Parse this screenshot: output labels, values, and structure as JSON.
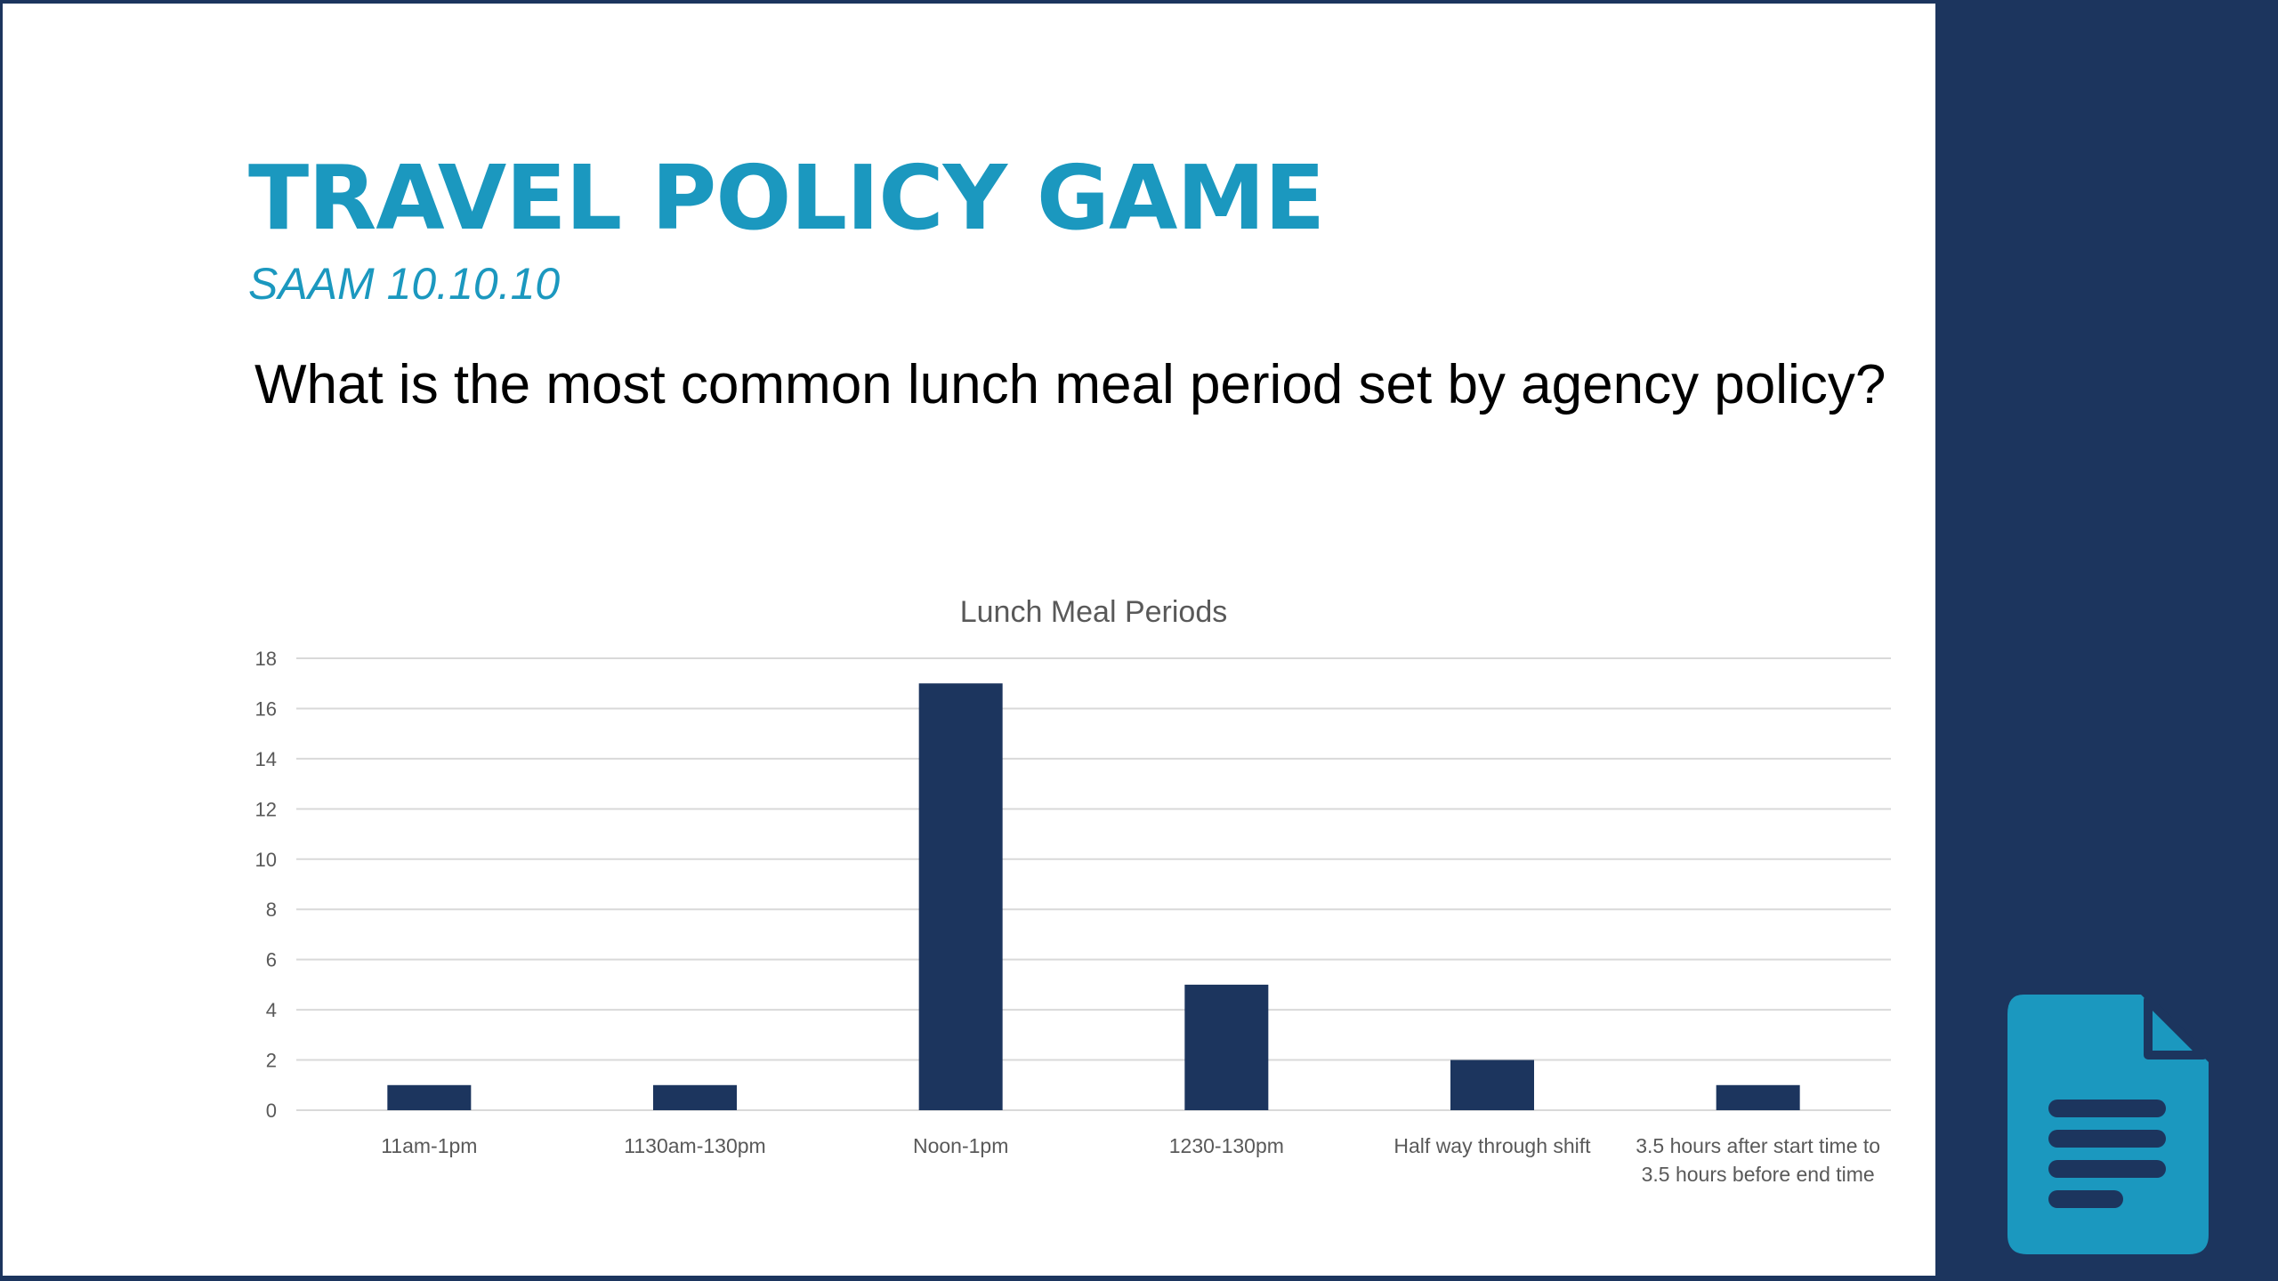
{
  "slide": {
    "title": "TRAVEL POLICY GAME",
    "subtitle": "SAAM 10.10.10",
    "question": "What is the most common lunch meal period set by agency policy?"
  },
  "icons": {
    "document": "document-icon"
  },
  "colors": {
    "background": "#1c355e",
    "accent": "#1b98bf",
    "bar": "#1c355e",
    "gridline": "#d9d9d9",
    "axis_text": "#595959"
  },
  "chart_data": {
    "type": "bar",
    "title": "Lunch Meal Periods",
    "categories": [
      "11am-1pm",
      "1130am-130pm",
      "Noon-1pm",
      "1230-130pm",
      "Half way through shift",
      "3.5 hours after start time to 3.5 hours before end time"
    ],
    "category_lines": [
      [
        "11am-1pm"
      ],
      [
        "1130am-130pm"
      ],
      [
        "Noon-1pm"
      ],
      [
        "1230-130pm"
      ],
      [
        "Half way through shift"
      ],
      [
        "3.5 hours after start time to",
        "3.5 hours before end time"
      ]
    ],
    "values": [
      1,
      1,
      17,
      5,
      2,
      1
    ],
    "yticks": [
      0,
      2,
      4,
      6,
      8,
      10,
      12,
      14,
      16,
      18
    ],
    "ylim": [
      0,
      18
    ],
    "grid": true,
    "legend": "none",
    "xlabel": "",
    "ylabel": ""
  }
}
